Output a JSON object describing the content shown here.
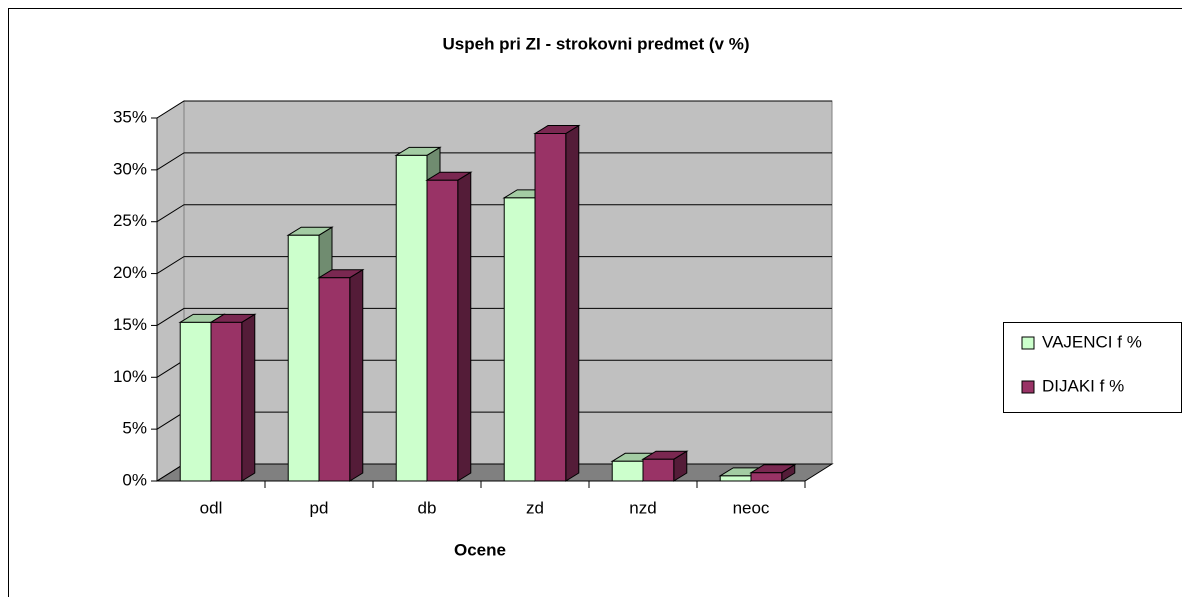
{
  "chart_data": {
    "type": "bar3d",
    "title": "Uspeh pri ZI - strokovni predmet (v %)",
    "x_label": "Ocene",
    "categories": [
      "odl",
      "pd",
      "db",
      "zd",
      "nzd",
      "neoc"
    ],
    "series": [
      {
        "name": "VAJENCI f %",
        "color": "#ccffcc",
        "values": [
          15.3,
          23.7,
          31.4,
          27.3,
          1.9,
          0.5
        ]
      },
      {
        "name": "DIJAKI f %",
        "color": "#993366",
        "values": [
          15.3,
          19.6,
          29.0,
          33.5,
          2.1,
          0.8
        ]
      }
    ],
    "ylim": [
      0,
      35
    ],
    "yticks": [
      {
        "value": 0,
        "label": "0%"
      },
      {
        "value": 5,
        "label": "5%"
      },
      {
        "value": 10,
        "label": "10%"
      },
      {
        "value": 15,
        "label": "15%"
      },
      {
        "value": 20,
        "label": "20%"
      },
      {
        "value": 25,
        "label": "25%"
      },
      {
        "value": 30,
        "label": "30%"
      },
      {
        "value": 35,
        "label": "35%"
      }
    ],
    "grid": true,
    "legend": "right"
  }
}
